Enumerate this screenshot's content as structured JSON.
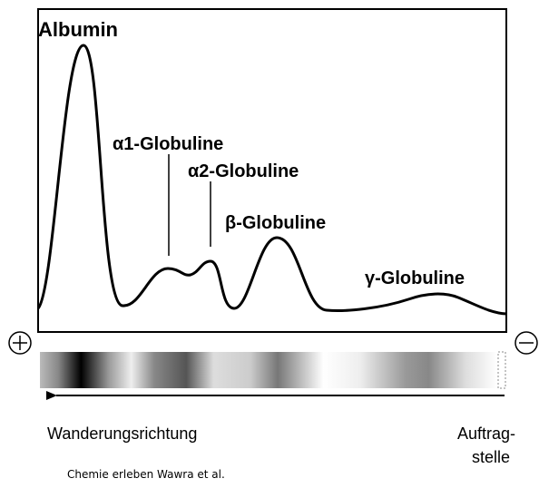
{
  "labels": {
    "albumin": "Albumin",
    "alpha1": "α1-Globuline",
    "alpha2": "α2-Globuline",
    "beta": "β-Globuline",
    "gamma": "γ-Globuline"
  },
  "direction": "Wanderungsrichtung",
  "origin": [
    "Auftrag-",
    "stelle"
  ],
  "credit": "Chemie erleben Wawra et al."
}
